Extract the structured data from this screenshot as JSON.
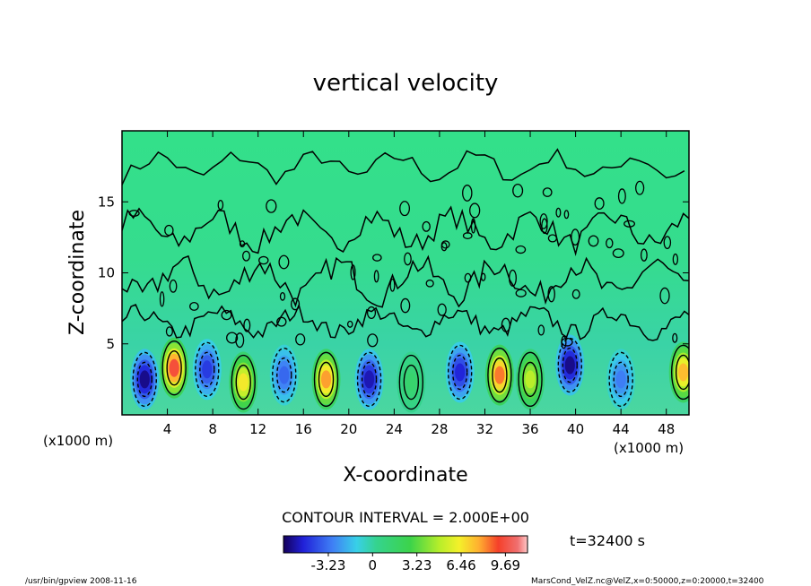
{
  "chart_data": {
    "type": "heatmap",
    "title": "vertical velocity",
    "xlabel": "X-coordinate",
    "ylabel": "Z-coordinate",
    "x_unit_left": "(x1000 m)",
    "x_unit_right": "(x1000 m)",
    "x_ticks": [
      4,
      8,
      12,
      16,
      20,
      24,
      28,
      32,
      36,
      40,
      44,
      48
    ],
    "y_ticks": [
      5,
      10,
      15
    ],
    "xlim": [
      0,
      50
    ],
    "ylim": [
      0,
      20
    ],
    "contour_interval_label": "CONTOUR INTERVAL = 2.000E+00",
    "time_label": "t=32400 s",
    "colorbar": {
      "ticks": [
        "-3.23",
        "0",
        "3.23",
        "6.46",
        "9.69"
      ],
      "range": [
        -6.5,
        11.3
      ]
    },
    "cells": [
      {
        "x": 2.0,
        "z": 2.5,
        "value": -6.0
      },
      {
        "x": 4.6,
        "z": 3.3,
        "value": 9.5
      },
      {
        "x": 7.5,
        "z": 3.2,
        "value": -4.5
      },
      {
        "x": 10.7,
        "z": 2.3,
        "value": 6.5
      },
      {
        "x": 14.3,
        "z": 2.8,
        "value": -3.5
      },
      {
        "x": 18.0,
        "z": 2.5,
        "value": 8.0
      },
      {
        "x": 21.8,
        "z": 2.5,
        "value": -5.5
      },
      {
        "x": 25.5,
        "z": 2.3,
        "value": 1.5
      },
      {
        "x": 29.8,
        "z": 3.0,
        "value": -5.0
      },
      {
        "x": 33.3,
        "z": 2.8,
        "value": 8.5
      },
      {
        "x": 36.0,
        "z": 2.5,
        "value": 5.0
      },
      {
        "x": 39.5,
        "z": 3.5,
        "value": -6.0
      },
      {
        "x": 44.0,
        "z": 2.5,
        "value": -3.0
      },
      {
        "x": 49.5,
        "z": 3.0,
        "value": 7.5
      }
    ]
  },
  "footer": {
    "left": "/usr/bin/gpview   2008-11-16",
    "right": "MarsCond_VelZ.nc@VelZ,x=0:50000,z=0:20000,t=32400"
  }
}
